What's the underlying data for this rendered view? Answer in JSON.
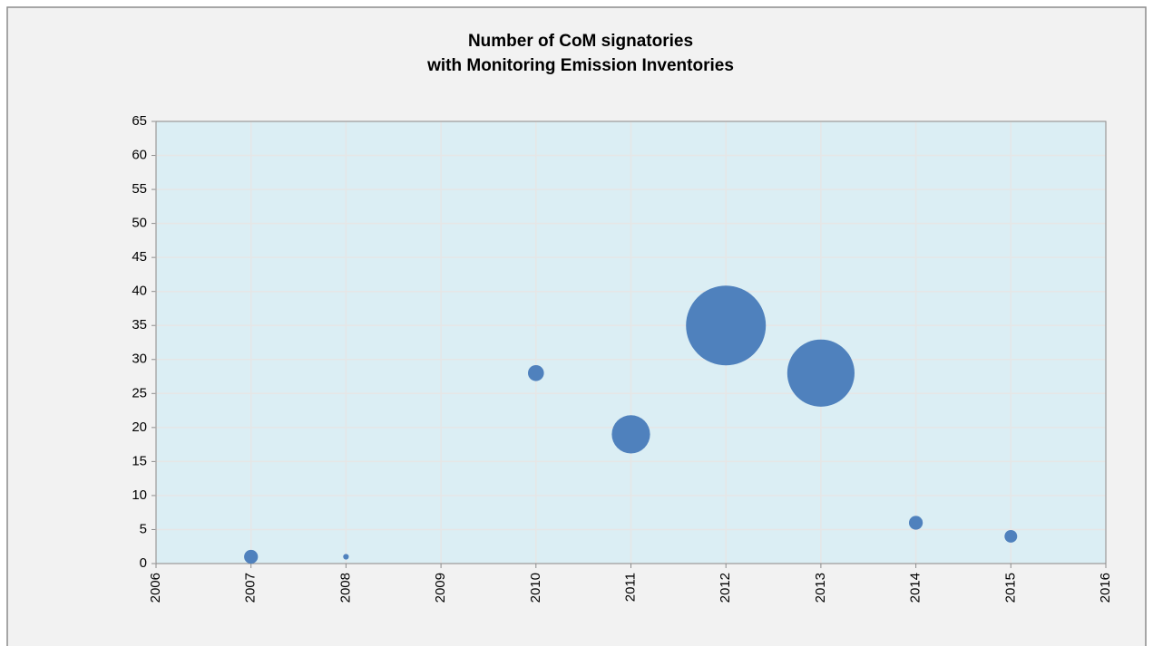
{
  "chart_data": {
    "type": "bubble",
    "title": [
      "Number of CoM signatories",
      "with Monitoring Emission Inventories"
    ],
    "x": [
      2007,
      2008,
      2010,
      2011,
      2012,
      2013,
      2014,
      2015
    ],
    "series": [
      {
        "color": "#4f81bd",
        "values": [
          1,
          1,
          28,
          19,
          35,
          28,
          6,
          4
        ],
        "sizes": [
          3,
          0.5,
          4,
          23,
          100,
          71,
          3,
          2.5
        ]
      }
    ],
    "xlim": [
      2006,
      2016
    ],
    "xticks": [
      2006,
      2007,
      2008,
      2009,
      2010,
      2011,
      2012,
      2013,
      2014,
      2015,
      2016
    ],
    "ylim": [
      0,
      65
    ],
    "yticks": [
      0,
      5,
      10,
      15,
      20,
      25,
      30,
      35,
      40,
      45,
      50,
      55,
      60,
      65
    ],
    "grid": true
  }
}
